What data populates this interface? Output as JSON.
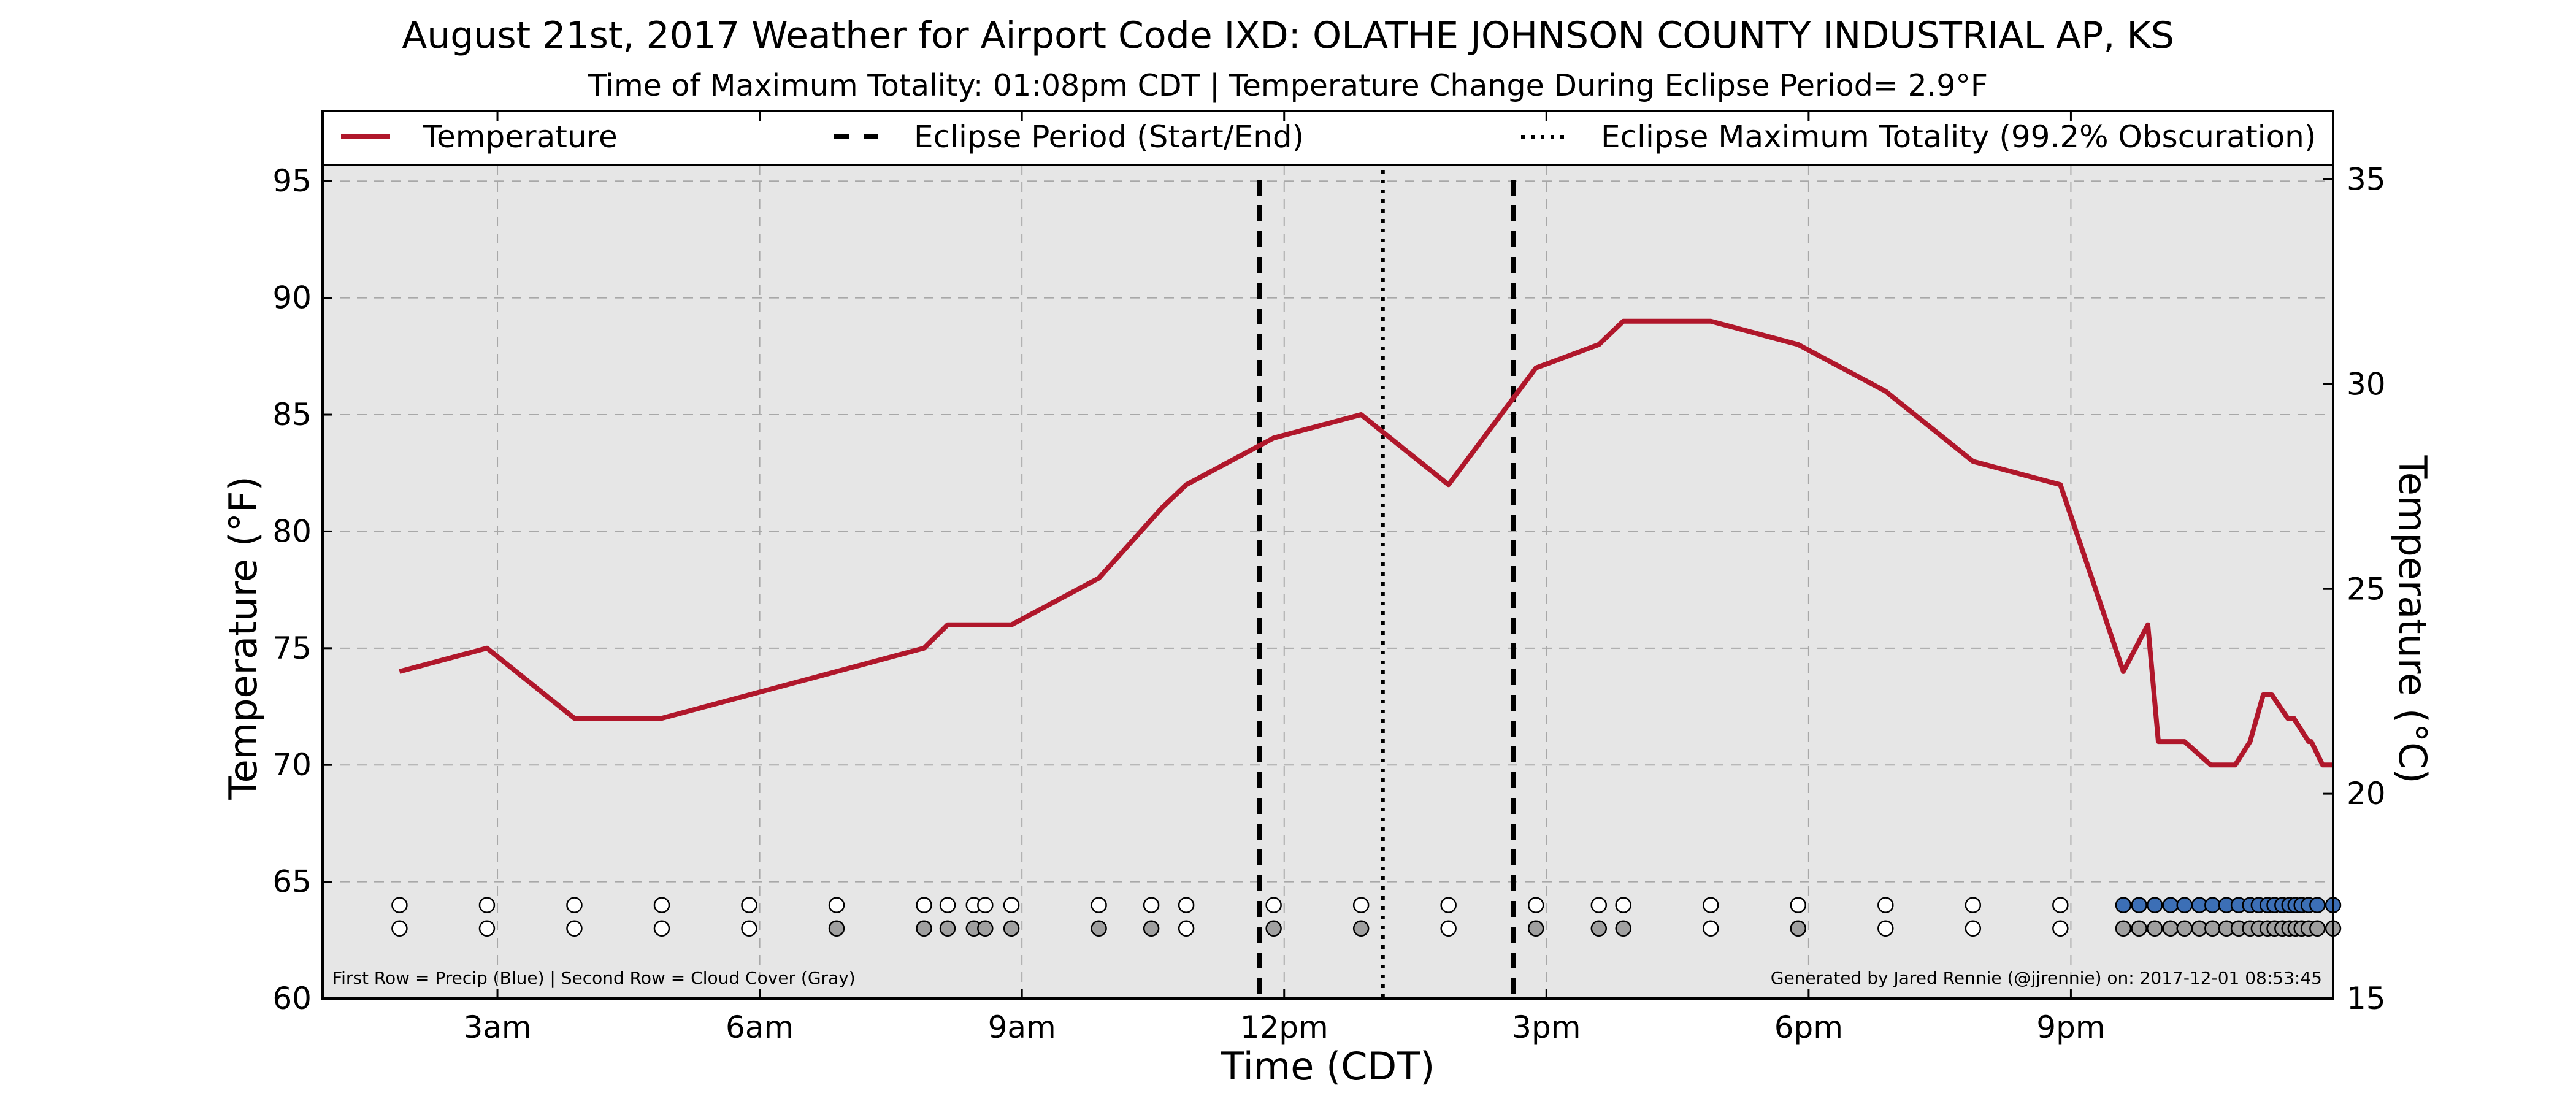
{
  "chart_data": {
    "type": "line",
    "title": "August 21st, 2017 Weather for Airport Code IXD: OLATHE JOHNSON COUNTY INDUSTRIAL AP, KS",
    "subtitle": "Time of Maximum Totality: 01:08pm CDT | Temperature Change During Eclipse Period= 2.9°F",
    "xlabel": "Time (CDT)",
    "ylabel": "Temperature (°F)",
    "ylabel_right": "Temperature (°C)",
    "x_unit": "hours since midnight CDT",
    "xlim": [
      1,
      24
    ],
    "ylim": [
      60,
      98
    ],
    "ylim_right": [
      15,
      36.67
    ],
    "x_ticks": [
      {
        "x": 3,
        "label": "3am"
      },
      {
        "x": 6,
        "label": "6am"
      },
      {
        "x": 9,
        "label": "9am"
      },
      {
        "x": 12,
        "label": "12pm"
      },
      {
        "x": 15,
        "label": "3pm"
      },
      {
        "x": 18,
        "label": "6pm"
      },
      {
        "x": 21,
        "label": "9pm"
      }
    ],
    "y_ticks": [
      60,
      65,
      70,
      75,
      80,
      85,
      90,
      95
    ],
    "y_ticks_right": [
      15,
      20,
      25,
      30,
      35
    ],
    "grid": true,
    "legend": {
      "placement": "top",
      "entries": [
        {
          "label": "Temperature",
          "style": "solid",
          "color": "#b0172b"
        },
        {
          "label": "Eclipse Period (Start/End)",
          "style": "dashed",
          "color": "#000000"
        },
        {
          "label": "Eclipse Maximum Totality (99.2% Obscuration)",
          "style": "dotted",
          "color": "#000000"
        }
      ]
    },
    "series": [
      {
        "name": "Temperature",
        "color": "#b0172b",
        "x": [
          1.88,
          2.88,
          3.88,
          4.88,
          5.88,
          6.88,
          7.88,
          8.15,
          8.88,
          9.88,
          10.6,
          10.88,
          11.88,
          12.88,
          13.88,
          14.88,
          15.6,
          15.88,
          16.88,
          17.88,
          18.88,
          19.88,
          20.88,
          21.6,
          21.88,
          22.0,
          22.3,
          22.6,
          22.88,
          23.05,
          23.2,
          23.3,
          23.48,
          23.55,
          23.72,
          23.75,
          23.88,
          24.0
        ],
        "values": [
          74,
          75,
          72,
          72,
          73,
          74,
          75,
          76,
          76,
          78,
          81,
          82,
          84,
          85,
          82,
          87,
          88,
          89,
          89,
          88,
          86,
          83,
          82,
          74,
          76,
          71,
          71,
          70,
          70,
          71,
          73,
          73,
          72,
          72,
          71,
          71,
          70,
          70
        ]
      }
    ],
    "eclipse_start": 11.72,
    "eclipse_end": 14.62,
    "max_totality": 13.13,
    "precip_row": {
      "color_precip": "#3c6fb6",
      "color_none": "#ffffff",
      "x": [
        1.88,
        2.88,
        3.88,
        4.88,
        5.88,
        6.88,
        7.88,
        8.15,
        8.45,
        8.58,
        8.88,
        9.88,
        10.48,
        10.88,
        11.88,
        12.88,
        13.88,
        14.88,
        15.6,
        15.88,
        16.88,
        17.88,
        18.88,
        19.88,
        20.88,
        21.6,
        21.78,
        21.96,
        22.14,
        22.3,
        22.47,
        22.62,
        22.78,
        22.92,
        23.05,
        23.15,
        23.25,
        23.33,
        23.42,
        23.5,
        23.57,
        23.64,
        23.72,
        23.82,
        24.0
      ],
      "precip": [
        false,
        false,
        false,
        false,
        false,
        false,
        false,
        false,
        false,
        false,
        false,
        false,
        false,
        false,
        false,
        false,
        false,
        false,
        false,
        false,
        false,
        false,
        false,
        false,
        false,
        true,
        true,
        true,
        true,
        true,
        true,
        true,
        true,
        true,
        true,
        true,
        true,
        true,
        true,
        true,
        true,
        true,
        true,
        true,
        true
      ]
    },
    "cloud_row": {
      "color_cloud": "#a0a0a0",
      "color_clear": "#ffffff",
      "x": [
        1.88,
        2.88,
        3.88,
        4.88,
        5.88,
        6.88,
        7.88,
        8.15,
        8.45,
        8.58,
        8.88,
        9.88,
        10.48,
        10.88,
        11.88,
        12.88,
        13.88,
        14.88,
        15.6,
        15.88,
        16.88,
        17.88,
        18.88,
        19.88,
        20.88,
        21.6,
        21.78,
        21.96,
        22.14,
        22.3,
        22.47,
        22.62,
        22.78,
        22.92,
        23.05,
        23.15,
        23.25,
        23.33,
        23.42,
        23.5,
        23.57,
        23.64,
        23.72,
        23.82,
        24.0
      ],
      "cloud": [
        false,
        false,
        false,
        false,
        false,
        true,
        true,
        true,
        true,
        true,
        true,
        true,
        true,
        false,
        true,
        true,
        false,
        true,
        true,
        true,
        false,
        true,
        false,
        false,
        false,
        true,
        true,
        true,
        true,
        true,
        true,
        true,
        true,
        true,
        true,
        true,
        true,
        true,
        true,
        true,
        true,
        true,
        true,
        true,
        true
      ]
    },
    "annotations": {
      "left": "First Row = Precip (Blue) | Second Row = Cloud Cover (Gray)",
      "right": "Generated by Jared Rennie (@jjrennie) on: 2017-12-01 08:53:45"
    }
  }
}
